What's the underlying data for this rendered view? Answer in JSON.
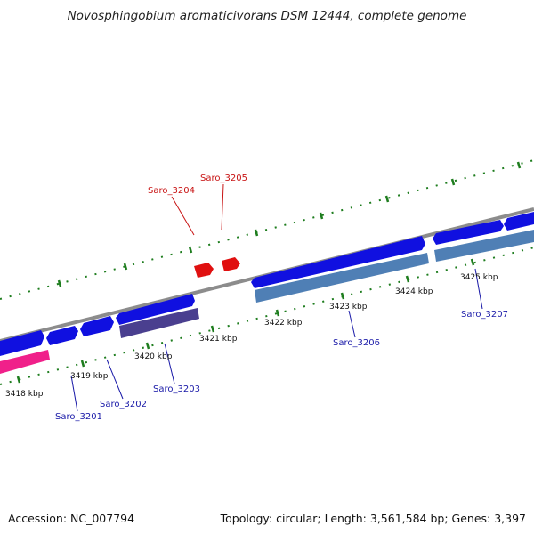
{
  "header": {
    "title": "Novosphingobium aromaticivorans DSM 12444, complete genome"
  },
  "footer": {
    "accession": "Accession: NC_007794",
    "summary": "Topology: circular; Length: 3,561,584 bp; Genes: 3,397"
  },
  "colors": {
    "backbone": "#8c8c8c",
    "tick": "#1e7d1e",
    "gene_blue": "#1010e0",
    "gene_steel": "#4f7fb5",
    "gene_purple": "#4a3f8f",
    "gene_pink": "#f0208a",
    "gene_red": "#e01010",
    "label_blue": "#1a1aa8",
    "label_red": "#c81414"
  },
  "kbp_labels": [
    "3418 kbp",
    "3419 kbp",
    "3420 kbp",
    "3421 kbp",
    "3422 kbp",
    "3423 kbp",
    "3424 kbp",
    "3425 kbp"
  ],
  "gene_labels": [
    {
      "id": "Saro_3201",
      "color": "blue"
    },
    {
      "id": "Saro_3202",
      "color": "blue"
    },
    {
      "id": "Saro_3203",
      "color": "blue"
    },
    {
      "id": "Saro_3204",
      "color": "red"
    },
    {
      "id": "Saro_3205",
      "color": "red"
    },
    {
      "id": "Saro_3206",
      "color": "blue"
    },
    {
      "id": "Saro_3207",
      "color": "blue"
    }
  ]
}
